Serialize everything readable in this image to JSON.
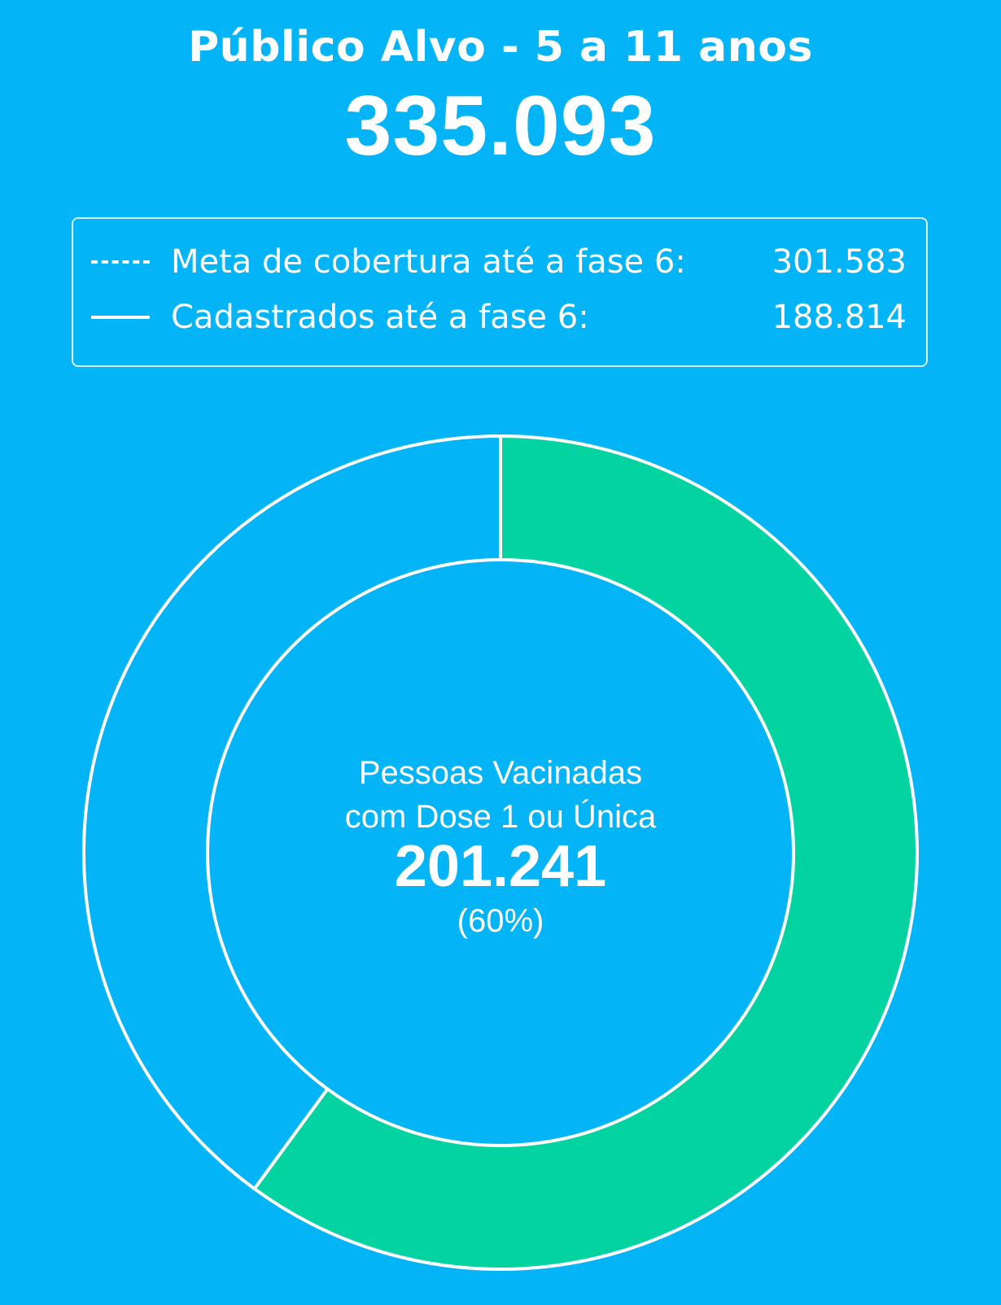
{
  "header": {
    "title": "Público Alvo - 5 a 11 anos",
    "total": "335.093"
  },
  "legend": {
    "items": [
      {
        "label": "Meta de cobertura até a fase 6:",
        "value": "301.583",
        "line_style": "dotted"
      },
      {
        "label": "Cadastrados até a fase 6:",
        "value": "188.814",
        "line_style": "solid"
      }
    ]
  },
  "chart_data": {
    "type": "pie",
    "style": "donut",
    "title": "Público Alvo - 5 a 11 anos",
    "total": 335093,
    "slices": [
      {
        "label": "Pessoas Vacinadas com Dose 1 ou Única",
        "value": 201241,
        "color": "#03d3a0"
      },
      {
        "value": 133852,
        "color": "#03b4f6"
      }
    ],
    "start_angle_deg": 0,
    "direction": "clockwise",
    "center_text": {
      "line1": "Pessoas Vacinadas",
      "line2": "com Dose 1 ou Única",
      "value": "201.241",
      "percent": "(60%)"
    }
  },
  "colors": {
    "background": "#03b4f6",
    "vaccinated": "#03d3a0",
    "outline": "#ffffff"
  }
}
